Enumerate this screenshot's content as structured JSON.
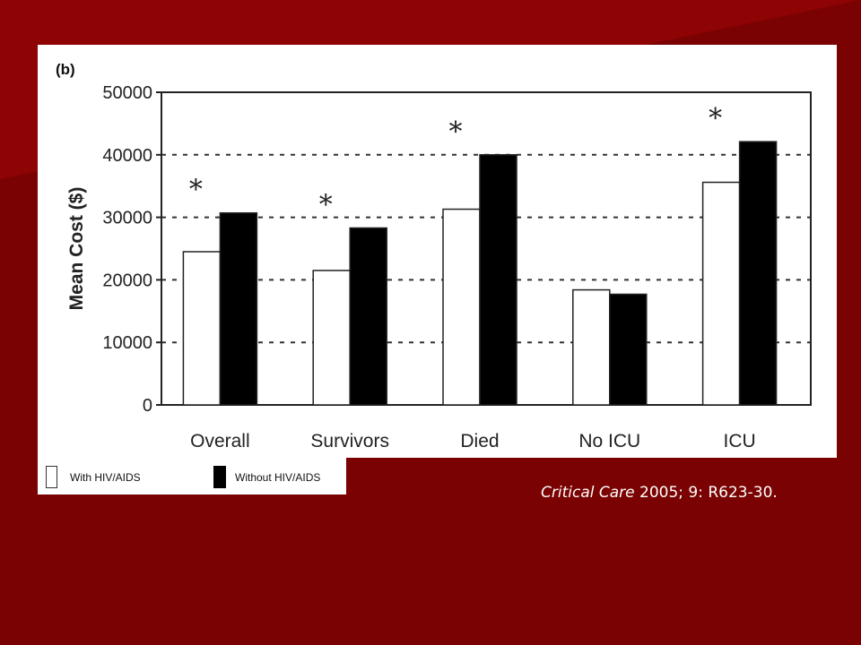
{
  "chart_data": {
    "type": "bar",
    "panel_label": "(b)",
    "ylabel": "Mean Cost ($)",
    "xlabel": "",
    "ylim": [
      0,
      50000
    ],
    "yticks": [
      "0",
      "10000",
      "20000",
      "30000",
      "40000",
      "50000"
    ],
    "grid": "horizontal dashed",
    "categories": [
      "Overall",
      "Survivors",
      "Died",
      "No ICU",
      "ICU"
    ],
    "series": [
      {
        "name": "With HIV/AIDS",
        "values": [
          24500,
          21500,
          31300,
          18400,
          35600
        ],
        "color": "#ffffff"
      },
      {
        "name": "Without HIV/AIDS",
        "values": [
          30700,
          28300,
          40000,
          17700,
          42100
        ],
        "color": "#000000"
      }
    ],
    "annotations": [
      "*",
      "*",
      "*",
      "",
      "*"
    ],
    "legend": "bottom-left"
  },
  "citation": {
    "journal": "Critical Care",
    "rest": " 2005; 9: R623-30."
  },
  "colors": {
    "background": "#7a0202",
    "accent": "#9a0404"
  }
}
